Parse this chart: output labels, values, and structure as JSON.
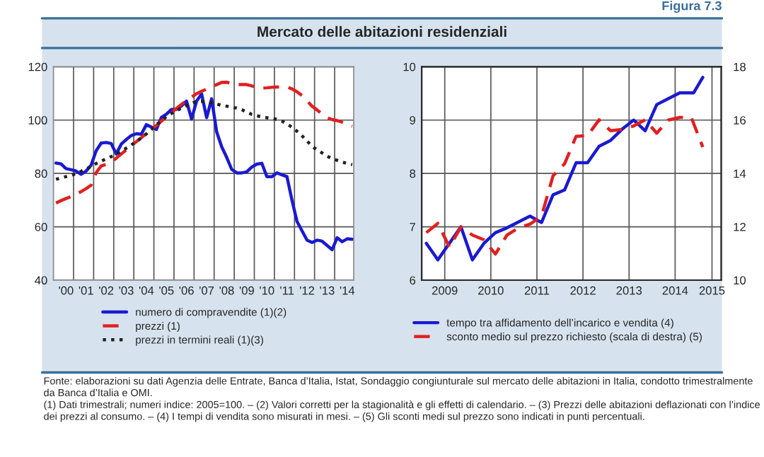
{
  "chart_data": [
    {
      "type": "line",
      "title": "Mercato delle abitazioni residenziali",
      "annotations": [
        "Figura 7.3"
      ],
      "categories": [
        null,
        null,
        "'00",
        null,
        null,
        null,
        "'01",
        null,
        null,
        null,
        "'02",
        null,
        null,
        null,
        "'03",
        null,
        null,
        null,
        "'04",
        null,
        null,
        null,
        "'05",
        null,
        null,
        null,
        "'06",
        null,
        null,
        null,
        "'07",
        null,
        null,
        null,
        "'08",
        null,
        null,
        null,
        "'09",
        null,
        null,
        null,
        "'10",
        null,
        null,
        null,
        "'11",
        null,
        null,
        null,
        "'12",
        null,
        null,
        null,
        "'13",
        null,
        null,
        null,
        "'14",
        null
      ],
      "ylim": [
        40,
        120
      ],
      "yticks": [
        40,
        60,
        80,
        100,
        120
      ],
      "grid": true,
      "legend": "bottom",
      "series": [
        {
          "name": "numero di compravendite (1)(2)",
          "color": "#1a1ad0",
          "line_style": "solid",
          "values": [
            83.9,
            83.6,
            81.8,
            81.4,
            80.9,
            79.7,
            80.9,
            83.1,
            88.5,
            91.4,
            91.6,
            91.2,
            87.3,
            91,
            92.7,
            94.2,
            94.9,
            94.7,
            98.3,
            97.4,
            96.5,
            101,
            102.2,
            104,
            104,
            105.3,
            107.1,
            100.4,
            107.1,
            109.8,
            100.9,
            108,
            95.6,
            90,
            86,
            81.5,
            80.2,
            80.2,
            80.6,
            82.4,
            83.5,
            83.8,
            78.8,
            78.8,
            80.2,
            79.5,
            78.8,
            70,
            62,
            58.5,
            55,
            54.1,
            55,
            54.6,
            53,
            51.4,
            55.9,
            54.4,
            55.5,
            55.3
          ]
        },
        {
          "name": "prezzi (1)",
          "color": "#e02020",
          "line_style": "dashed",
          "values": [
            68.9,
            69.8,
            70.6,
            71.3,
            72.2,
            73.2,
            74.3,
            75.6,
            80.3,
            82.8,
            83.4,
            84.3,
            85.7,
            87.3,
            88.8,
            90.4,
            91.9,
            93.4,
            95,
            96.5,
            98,
            99.6,
            101.2,
            102.8,
            104.4,
            105.9,
            107.3,
            108.6,
            109.9,
            110.8,
            111.6,
            112.5,
            113.3,
            114.1,
            114.2,
            113.6,
            113.3,
            113.3,
            113.3,
            112.8,
            112.4,
            112,
            112.1,
            112.3,
            112.4,
            112.4,
            112.4,
            111.7,
            110.6,
            109.2,
            107.2,
            105.2,
            103.8,
            102.3,
            100.9,
            100.2,
            99.8,
            99.2,
            98.4,
            97.7
          ]
        },
        {
          "name": "prezzi in termini reali (1)(3)",
          "color": "#222222",
          "line_style": "dotted",
          "values": [
            77.8,
            78.3,
            78.8,
            79.3,
            79.9,
            80.8,
            81.7,
            82.6,
            83.7,
            84.6,
            85.5,
            86.3,
            87.3,
            88.3,
            89.5,
            90.7,
            92,
            93.3,
            94.8,
            96.5,
            98.2,
            99.8,
            101.3,
            102.5,
            103.5,
            104.5,
            105.4,
            106.2,
            107,
            107,
            106.8,
            106.5,
            106,
            105.5,
            105.2,
            104.8,
            104.5,
            103.9,
            103,
            102.1,
            101.6,
            101.2,
            100.9,
            100.6,
            100.3,
            99.6,
            98.6,
            97.3,
            95.8,
            94.1,
            92.2,
            90.2,
            88.8,
            87.7,
            86.5,
            85.5,
            84.9,
            84.3,
            83.7,
            83.3
          ]
        }
      ]
    },
    {
      "type": "line",
      "annotations": [
        "Fonte: elaborazioni su dati Agenzia delle Entrate, Banca d’Italia, Istat, Sondaggio congiunturale sul mercato delle abitazioni in Italia, condotto trimestralmente da Banca d’Italia e OMI.",
        "(1) Dati trimestrali; numeri indice: 2005=100. – (2) Valori corretti per la stagionalità e gli effetti di calendario. – (3) Prezzi delle abitazioni deflazionati con l’indice dei prezzi al consumo. – (4) I tempi di vendita sono misurati in mesi. – (5) Gli sconti medi sul prezzo sono indicati in punti percentuali."
      ],
      "xlim": [
        2009,
        2015.5
      ],
      "xticks": [
        {
          "value": 2009.5,
          "label": "2009"
        },
        {
          "value": 2010.5,
          "label": "2010"
        },
        {
          "value": 2011.5,
          "label": "2011"
        },
        {
          "value": 2012.5,
          "label": "2012"
        },
        {
          "value": 2013.5,
          "label": "2013"
        },
        {
          "value": 2014.5,
          "label": "2014"
        },
        {
          "value": 2015.3,
          "label": "2015"
        }
      ],
      "ylim": [
        6,
        10
      ],
      "yticks": [
        6,
        7,
        8,
        9,
        10
      ],
      "y2lim": [
        10,
        18
      ],
      "y2ticks": [
        10,
        12,
        14,
        16,
        18
      ],
      "grid": true,
      "legend": "bottom",
      "series": [
        {
          "name": "tempo tra affidamento dell’incarico e vendita (4)",
          "color": "#1a1ad0",
          "line_style": "solid",
          "x": [
            2009.1,
            2009.35,
            2009.6,
            2009.85,
            2010.1,
            2010.35,
            2010.6,
            2010.85,
            2011.35,
            2011.6,
            2011.85,
            2012.1,
            2012.35,
            2012.6,
            2012.85,
            2013.1,
            2013.35,
            2013.6,
            2013.85,
            2014.1,
            2014.35,
            2014.6,
            2014.9,
            2015.1
          ],
          "values": [
            6.69,
            6.38,
            6.69,
            7.0,
            6.38,
            6.69,
            6.89,
            6.98,
            7.2,
            7.08,
            7.6,
            7.69,
            8.2,
            8.2,
            8.51,
            8.62,
            8.83,
            9.0,
            8.8,
            9.29,
            9.4,
            9.51,
            9.51,
            9.8
          ]
        },
        {
          "name": "sconto medio sul prezzo richiesto (scala di destra) (5)",
          "color": "#e02020",
          "line_style": "dashed",
          "axis": "y2",
          "x": [
            2009.1,
            2009.35,
            2009.6,
            2009.85,
            2010.1,
            2010.35,
            2010.6,
            2010.85,
            2011.1,
            2011.35,
            2011.6,
            2011.85,
            2012.1,
            2012.35,
            2012.6,
            2012.85,
            2013.1,
            2013.35,
            2013.6,
            2013.85,
            2014.1,
            2014.35,
            2014.6,
            2014.85,
            2015.1
          ],
          "values": [
            11.78,
            12.13,
            11.24,
            11.99,
            11.69,
            11.51,
            10.98,
            11.69,
            11.96,
            12.1,
            12.4,
            13.91,
            14.36,
            15.39,
            15.42,
            16.01,
            15.6,
            15.65,
            15.78,
            16.01,
            15.51,
            16.0,
            16.1,
            16.1,
            14.99
          ]
        }
      ]
    }
  ]
}
